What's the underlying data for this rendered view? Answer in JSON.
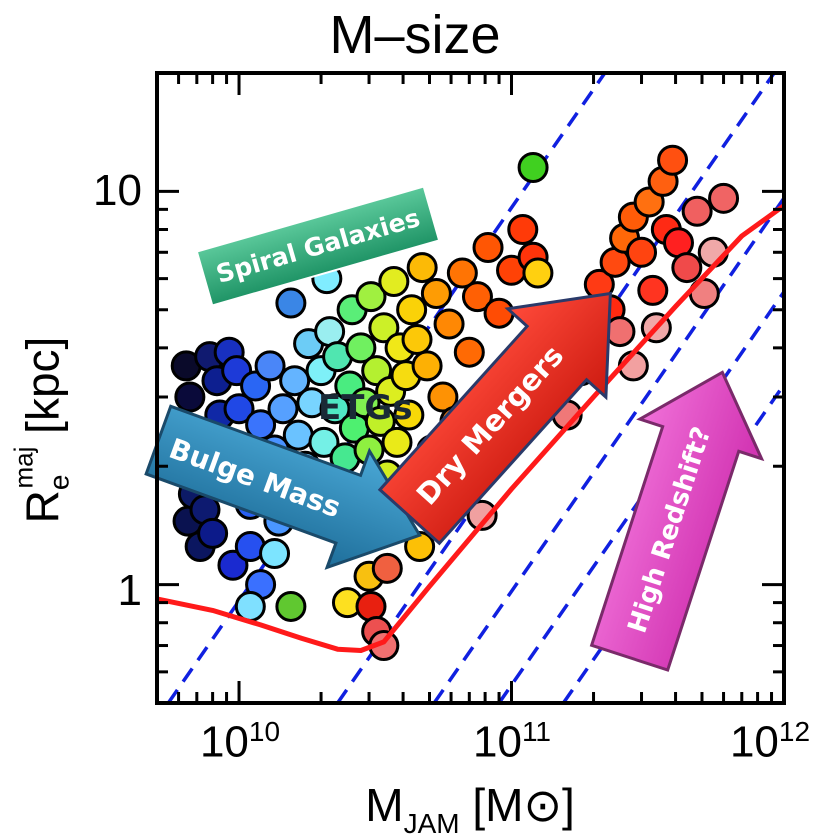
{
  "chart_data": {
    "type": "scatter",
    "title": "M–size",
    "xlabel": {
      "main": "M",
      "sub": "JAM",
      "unit": " [M⊙]"
    },
    "ylabel": {
      "main": "R",
      "sub": "e",
      "sup": "maj",
      "unit": " [kpc]"
    },
    "x_scale": "log",
    "y_scale": "log",
    "xlim": [
      5000000000.0,
      1000000000000.0
    ],
    "ylim": [
      0.5,
      20
    ],
    "x_ticks": [
      {
        "base": "10",
        "exp": "10",
        "value": 10000000000.0
      },
      {
        "base": "10",
        "exp": "11",
        "value": 100000000000.0
      },
      {
        "base": "10",
        "exp": "12",
        "value": 1000000000000.0
      }
    ],
    "y_ticks": [
      {
        "label": "1",
        "value": 1
      },
      {
        "label": "10",
        "value": 10
      }
    ],
    "grid": false,
    "annotations": {
      "spiral": "Spiral Galaxies",
      "etgs": "ETGs",
      "bulge": "Bulge Mass",
      "dry": "Dry Mergers",
      "highz": "High Redshift?"
    },
    "boundary_curve": {
      "color": "#ff1a1a",
      "x": [
        5000000000.0,
        8000000000.0,
        12000000000.0,
        17000000000.0,
        23000000000.0,
        28000000000.0,
        34000000000.0,
        50000000000.0,
        100000000000.0,
        200000000000.0,
        400000000000.0,
        700000000000.0,
        1000000000000.0
      ],
      "y": [
        0.92,
        0.86,
        0.79,
        0.73,
        0.685,
        0.68,
        0.715,
        0.99,
        1.75,
        3.0,
        5.1,
        7.7,
        9.2
      ]
    },
    "dashed_lines": {
      "color": "#1020e0",
      "slope": 1,
      "intercepts_x_at_y_0p5": [
        5500000000.0,
        23000000000.0,
        52000000000.0,
        90000000000.0,
        155000000000.0
      ]
    },
    "points": [
      {
        "x": 6400000000.0,
        "y": 3.6,
        "c": "#0a0a2a"
      },
      {
        "x": 6600000000.0,
        "y": 3.0,
        "c": "#0a0a3a"
      },
      {
        "x": 6300000000.0,
        "y": 2.5,
        "c": "#0b0b4a"
      },
      {
        "x": 6500000000.0,
        "y": 1.45,
        "c": "#0a1250"
      },
      {
        "x": 6800000000.0,
        "y": 1.7,
        "c": "#0c1a66"
      },
      {
        "x": 7200000000.0,
        "y": 1.25,
        "c": "#0b1660"
      },
      {
        "x": 7500000000.0,
        "y": 1.55,
        "c": "#0d1a70"
      },
      {
        "x": 8000000000.0,
        "y": 1.35,
        "c": "#0c1a8a"
      },
      {
        "x": 7800000000.0,
        "y": 3.8,
        "c": "#101a70"
      },
      {
        "x": 8300000000.0,
        "y": 3.3,
        "c": "#0d1f90"
      },
      {
        "x": 8500000000.0,
        "y": 2.7,
        "c": "#1028a6"
      },
      {
        "x": 9500000000.0,
        "y": 1.12,
        "c": "#1a2ad0"
      },
      {
        "x": 9200000000.0,
        "y": 3.9,
        "c": "#1830c0"
      },
      {
        "x": 9800000000.0,
        "y": 3.5,
        "c": "#1d3ad8"
      },
      {
        "x": 10000000000.0,
        "y": 2.8,
        "c": "#2048e6"
      },
      {
        "x": 10500000000.0,
        "y": 2.2,
        "c": "#2256f0"
      },
      {
        "x": 11000000000.0,
        "y": 1.6,
        "c": "#2a60f4"
      },
      {
        "x": 11000000000.0,
        "y": 1.25,
        "c": "#2650f0"
      },
      {
        "x": 11500000000.0,
        "y": 3.2,
        "c": "#2a66f4"
      },
      {
        "x": 12000000000.0,
        "y": 1.0,
        "c": "#3a70ff"
      },
      {
        "x": 12000000000.0,
        "y": 2.55,
        "c": "#3a74fc"
      },
      {
        "x": 12500000000.0,
        "y": 1.9,
        "c": "#3c82ff"
      },
      {
        "x": 13000000000.0,
        "y": 3.6,
        "c": "#4a86f8"
      },
      {
        "x": 13500000000.0,
        "y": 2.2,
        "c": "#4a92ff"
      },
      {
        "x": 14000000000.0,
        "y": 1.45,
        "c": "#4a96ff"
      },
      {
        "x": 14500000000.0,
        "y": 2.8,
        "c": "#56a0ff"
      },
      {
        "x": 15500000000.0,
        "y": 5.2,
        "c": "#3a86e6"
      },
      {
        "x": 16000000000.0,
        "y": 1.7,
        "c": "#5ab4ff"
      },
      {
        "x": 16000000000.0,
        "y": 3.3,
        "c": "#64b4ff"
      },
      {
        "x": 16500000000.0,
        "y": 2.4,
        "c": "#6ac2ff"
      },
      {
        "x": 17500000000.0,
        "y": 2.0,
        "c": "#70c8ff"
      },
      {
        "x": 18000000000.0,
        "y": 4.1,
        "c": "#6cccf6"
      },
      {
        "x": 18500000000.0,
        "y": 2.9,
        "c": "#78d4ff"
      },
      {
        "x": 11000000000.0,
        "y": 0.88,
        "c": "#7fe0ff"
      },
      {
        "x": 13500000000.0,
        "y": 1.2,
        "c": "#7ce4ff"
      },
      {
        "x": 19500000000.0,
        "y": 1.55,
        "c": "#80e8ff"
      },
      {
        "x": 20000000000.0,
        "y": 3.5,
        "c": "#7ef0f8"
      },
      {
        "x": 20500000000.0,
        "y": 2.3,
        "c": "#74f0e6"
      },
      {
        "x": 21000000000.0,
        "y": 6.0,
        "c": "#80ecff"
      },
      {
        "x": 21500000000.0,
        "y": 4.4,
        "c": "#9aeef0"
      },
      {
        "x": 22000000000.0,
        "y": 1.85,
        "c": "#60ecd6"
      },
      {
        "x": 22500000000.0,
        "y": 2.8,
        "c": "#50e8c4"
      },
      {
        "x": 23000000000.0,
        "y": 3.8,
        "c": "#50e6b0"
      },
      {
        "x": 24000000000.0,
        "y": 1.4,
        "c": "#40e4a0"
      },
      {
        "x": 24500000000.0,
        "y": 2.1,
        "c": "#46e890"
      },
      {
        "x": 25500000000.0,
        "y": 3.2,
        "c": "#4aec80"
      },
      {
        "x": 26000000000.0,
        "y": 5.0,
        "c": "#5aee78"
      },
      {
        "x": 15500000000.0,
        "y": 0.88,
        "c": "#60c830"
      },
      {
        "x": 26500000000.0,
        "y": 2.5,
        "c": "#4ef070"
      },
      {
        "x": 27500000000.0,
        "y": 1.7,
        "c": "#62ee5a"
      },
      {
        "x": 28000000000.0,
        "y": 4.0,
        "c": "#70f060"
      },
      {
        "x": 29000000000.0,
        "y": 2.9,
        "c": "#80f050"
      },
      {
        "x": 30000000000.0,
        "y": 2.2,
        "c": "#8ef040"
      },
      {
        "x": 30500000000.0,
        "y": 5.4,
        "c": "#a0f040"
      },
      {
        "x": 31500000000.0,
        "y": 1.45,
        "c": "#a4ec30"
      },
      {
        "x": 32000000000.0,
        "y": 3.5,
        "c": "#b4f030"
      },
      {
        "x": 33000000000.0,
        "y": 2.6,
        "c": "#c0f028"
      },
      {
        "x": 34000000000.0,
        "y": 4.5,
        "c": "#ccf028"
      },
      {
        "x": 35000000000.0,
        "y": 1.9,
        "c": "#d4ee20"
      },
      {
        "x": 36000000000.0,
        "y": 3.1,
        "c": "#dcee20"
      },
      {
        "x": 37000000000.0,
        "y": 5.9,
        "c": "#e2ec20"
      },
      {
        "x": 38000000000.0,
        "y": 2.3,
        "c": "#eaea18"
      },
      {
        "x": 39000000000.0,
        "y": 4.0,
        "c": "#f0e818"
      },
      {
        "x": 40000000000.0,
        "y": 1.55,
        "c": "#f4e010"
      },
      {
        "x": 41000000000.0,
        "y": 3.4,
        "c": "#f6dc10"
      },
      {
        "x": 42000000000.0,
        "y": 2.7,
        "c": "#f8d808"
      },
      {
        "x": 43000000000.0,
        "y": 5.0,
        "c": "#fad208"
      },
      {
        "x": 45000000000.0,
        "y": 4.2,
        "c": "#fcc808"
      },
      {
        "x": 46000000000.0,
        "y": 1.25,
        "c": "#fcc006"
      },
      {
        "x": 47000000000.0,
        "y": 6.4,
        "c": "#fcba06"
      },
      {
        "x": 49000000000.0,
        "y": 3.6,
        "c": "#fdb004"
      },
      {
        "x": 51000000000.0,
        "y": 2.2,
        "c": "#fda604"
      },
      {
        "x": 53000000000.0,
        "y": 5.5,
        "c": "#fe9c04"
      },
      {
        "x": 56000000000.0,
        "y": 3.0,
        "c": "#fe9204"
      },
      {
        "x": 59000000000.0,
        "y": 4.6,
        "c": "#ff8804"
      },
      {
        "x": 62000000000.0,
        "y": 2.6,
        "c": "#ff7e04"
      },
      {
        "x": 66000000000.0,
        "y": 6.2,
        "c": "#ff7404"
      },
      {
        "x": 70000000000.0,
        "y": 3.9,
        "c": "#ff6a04"
      },
      {
        "x": 75000000000.0,
        "y": 5.4,
        "c": "#ff6004"
      },
      {
        "x": 82000000000.0,
        "y": 7.2,
        "c": "#ff5604"
      },
      {
        "x": 90000000000.0,
        "y": 4.9,
        "c": "#ff4c04"
      },
      {
        "x": 100000000000.0,
        "y": 6.3,
        "c": "#ff4206"
      },
      {
        "x": 110000000000.0,
        "y": 8.0,
        "c": "#ff3a08"
      },
      {
        "x": 120000000000.0,
        "y": 6.8,
        "c": "#ff340a"
      },
      {
        "x": 125000000000.0,
        "y": 6.2,
        "c": "#ffd010"
      },
      {
        "x": 120000000000.0,
        "y": 11.5,
        "c": "#40d020"
      },
      {
        "x": 25000000000.0,
        "y": 0.9,
        "c": "#fde020"
      },
      {
        "x": 30000000000.0,
        "y": 1.05,
        "c": "#f8c010"
      },
      {
        "x": 30500000000.0,
        "y": 0.88,
        "c": "#e82010"
      },
      {
        "x": 32000000000.0,
        "y": 0.76,
        "c": "#ec5050"
      },
      {
        "x": 35000000000.0,
        "y": 1.1,
        "c": "#f06040"
      },
      {
        "x": 34000000000.0,
        "y": 0.7,
        "c": "#f07070"
      },
      {
        "x": 50000000000.0,
        "y": 1.6,
        "c": "#f45a50"
      },
      {
        "x": 78000000000.0,
        "y": 1.5,
        "c": "#f0a0a0"
      },
      {
        "x": 115000000000.0,
        "y": 2.9,
        "c": "#f27a7a"
      },
      {
        "x": 140000000000.0,
        "y": 3.2,
        "c": "#f08080"
      },
      {
        "x": 160000000000.0,
        "y": 2.7,
        "c": "#f07878"
      },
      {
        "x": 180000000000.0,
        "y": 3.5,
        "c": "#f48080"
      },
      {
        "x": 190000000000.0,
        "y": 4.6,
        "c": "#ff3a10"
      },
      {
        "x": 210000000000.0,
        "y": 5.8,
        "c": "#ff3a14"
      },
      {
        "x": 240000000000.0,
        "y": 6.6,
        "c": "#ff4a10"
      },
      {
        "x": 230000000000.0,
        "y": 5.0,
        "c": "#ff2a10"
      },
      {
        "x": 250000000000.0,
        "y": 4.4,
        "c": "#f07070"
      },
      {
        "x": 260000000000.0,
        "y": 7.6,
        "c": "#ff6808"
      },
      {
        "x": 280000000000.0,
        "y": 8.6,
        "c": "#ff5c08"
      },
      {
        "x": 280000000000.0,
        "y": 3.6,
        "c": "#f2a0a0"
      },
      {
        "x": 300000000000.0,
        "y": 7.0,
        "c": "#ff4410"
      },
      {
        "x": 320000000000.0,
        "y": 9.4,
        "c": "#ff7010"
      },
      {
        "x": 330000000000.0,
        "y": 5.6,
        "c": "#ff3420"
      },
      {
        "x": 340000000000.0,
        "y": 4.5,
        "c": "#f0a8a8"
      },
      {
        "x": 360000000000.0,
        "y": 10.6,
        "c": "#ff6010"
      },
      {
        "x": 370000000000.0,
        "y": 8.0,
        "c": "#ff2a14"
      },
      {
        "x": 390000000000.0,
        "y": 12.0,
        "c": "#ff5010"
      },
      {
        "x": 410000000000.0,
        "y": 7.4,
        "c": "#ff2020"
      },
      {
        "x": 440000000000.0,
        "y": 6.4,
        "c": "#f04a4a"
      },
      {
        "x": 480000000000.0,
        "y": 8.9,
        "c": "#f06060"
      },
      {
        "x": 510000000000.0,
        "y": 5.5,
        "c": "#f08080"
      },
      {
        "x": 550000000000.0,
        "y": 7.0,
        "c": "#f0a8a8"
      },
      {
        "x": 600000000000.0,
        "y": 9.6,
        "c": "#f06464"
      }
    ]
  }
}
